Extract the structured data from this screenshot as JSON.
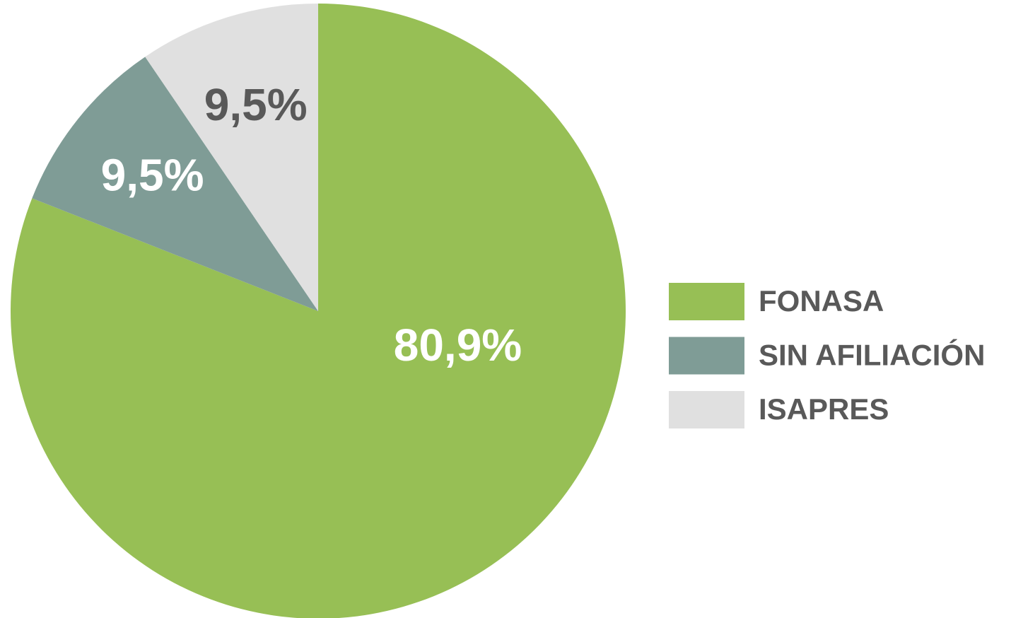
{
  "chart_data": {
    "type": "pie",
    "categories": [
      "FONASA",
      "SIN AFILIACIÓN",
      "ISAPRES"
    ],
    "values": [
      80.9,
      9.5,
      9.5
    ],
    "value_labels": [
      "80,9%",
      "9,5%",
      "9,5%"
    ],
    "colors": [
      "#97bf55",
      "#7f9c96",
      "#e0e0e0"
    ],
    "label_colors": [
      "#ffffff",
      "#ffffff",
      "#595959"
    ],
    "legend": "right"
  }
}
